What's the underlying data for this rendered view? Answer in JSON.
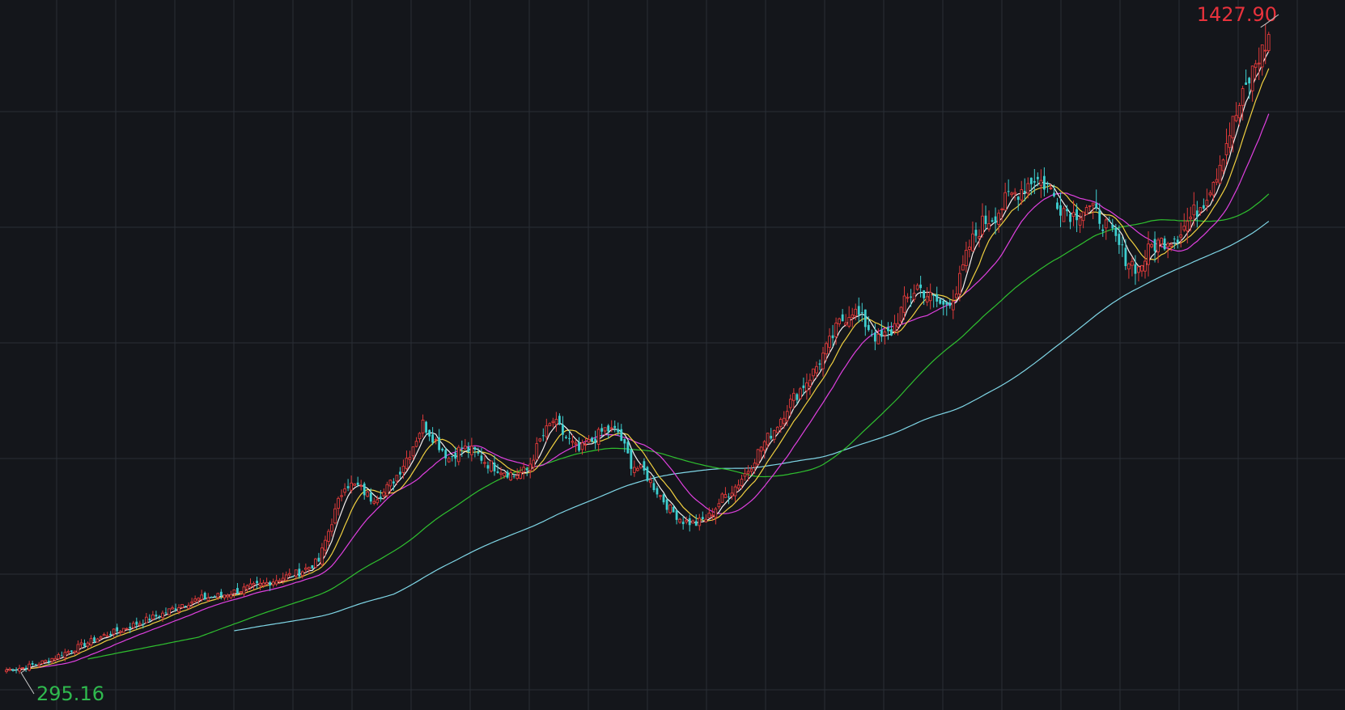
{
  "chart_data": {
    "type": "candlestick",
    "high_label": "1427.90",
    "low_label": "295.16",
    "grid": true,
    "colors": {
      "background": "#14161b",
      "grid": "#2a2e36",
      "up": "#e03a3a",
      "down": "#3ecfd0",
      "high_label": "#e8323c",
      "low_label": "#2fba4e",
      "ma5": "#f5f0f0",
      "ma10": "#f0d040",
      "ma20": "#e040e0",
      "ma60": "#2fc02f",
      "ma120": "#7fd6e6"
    },
    "y_range": [
      230,
      1470
    ],
    "anchors": [
      [
        0,
        300
      ],
      [
        6,
        305
      ],
      [
        12,
        315
      ],
      [
        18,
        330
      ],
      [
        24,
        345
      ],
      [
        30,
        360
      ],
      [
        36,
        372
      ],
      [
        42,
        385
      ],
      [
        48,
        398
      ],
      [
        54,
        415
      ],
      [
        60,
        425
      ],
      [
        66,
        430
      ],
      [
        72,
        440
      ],
      [
        78,
        448
      ],
      [
        84,
        460
      ],
      [
        90,
        470
      ],
      [
        96,
        490
      ],
      [
        100,
        560
      ],
      [
        104,
        625
      ],
      [
        108,
        620
      ],
      [
        112,
        600
      ],
      [
        116,
        610
      ],
      [
        120,
        640
      ],
      [
        124,
        680
      ],
      [
        128,
        730
      ],
      [
        132,
        700
      ],
      [
        136,
        670
      ],
      [
        140,
        688
      ],
      [
        144,
        680
      ],
      [
        148,
        660
      ],
      [
        152,
        650
      ],
      [
        156,
        640
      ],
      [
        160,
        648
      ],
      [
        164,
        700
      ],
      [
        168,
        735
      ],
      [
        172,
        705
      ],
      [
        176,
        682
      ],
      [
        180,
        700
      ],
      [
        184,
        720
      ],
      [
        188,
        715
      ],
      [
        192,
        660
      ],
      [
        196,
        645
      ],
      [
        200,
        612
      ],
      [
        204,
        580
      ],
      [
        208,
        560
      ],
      [
        212,
        555
      ],
      [
        216,
        568
      ],
      [
        220,
        600
      ],
      [
        224,
        620
      ],
      [
        228,
        650
      ],
      [
        232,
        690
      ],
      [
        236,
        720
      ],
      [
        240,
        760
      ],
      [
        244,
        790
      ],
      [
        248,
        820
      ],
      [
        252,
        860
      ],
      [
        256,
        905
      ],
      [
        260,
        930
      ],
      [
        264,
        905
      ],
      [
        268,
        875
      ],
      [
        272,
        890
      ],
      [
        276,
        940
      ],
      [
        280,
        970
      ],
      [
        284,
        950
      ],
      [
        288,
        935
      ],
      [
        292,
        960
      ],
      [
        296,
        1040
      ],
      [
        300,
        1080
      ],
      [
        304,
        1095
      ],
      [
        308,
        1125
      ],
      [
        312,
        1140
      ],
      [
        316,
        1160
      ],
      [
        320,
        1145
      ],
      [
        324,
        1110
      ],
      [
        328,
        1095
      ],
      [
        332,
        1110
      ],
      [
        336,
        1090
      ],
      [
        340,
        1060
      ],
      [
        344,
        1020
      ],
      [
        348,
        1000
      ],
      [
        352,
        1040
      ],
      [
        356,
        1050
      ],
      [
        360,
        1060
      ],
      [
        364,
        1090
      ],
      [
        368,
        1120
      ],
      [
        372,
        1170
      ],
      [
        376,
        1240
      ],
      [
        380,
        1300
      ],
      [
        384,
        1360
      ],
      [
        386,
        1380
      ],
      [
        388,
        1405
      ]
    ]
  }
}
